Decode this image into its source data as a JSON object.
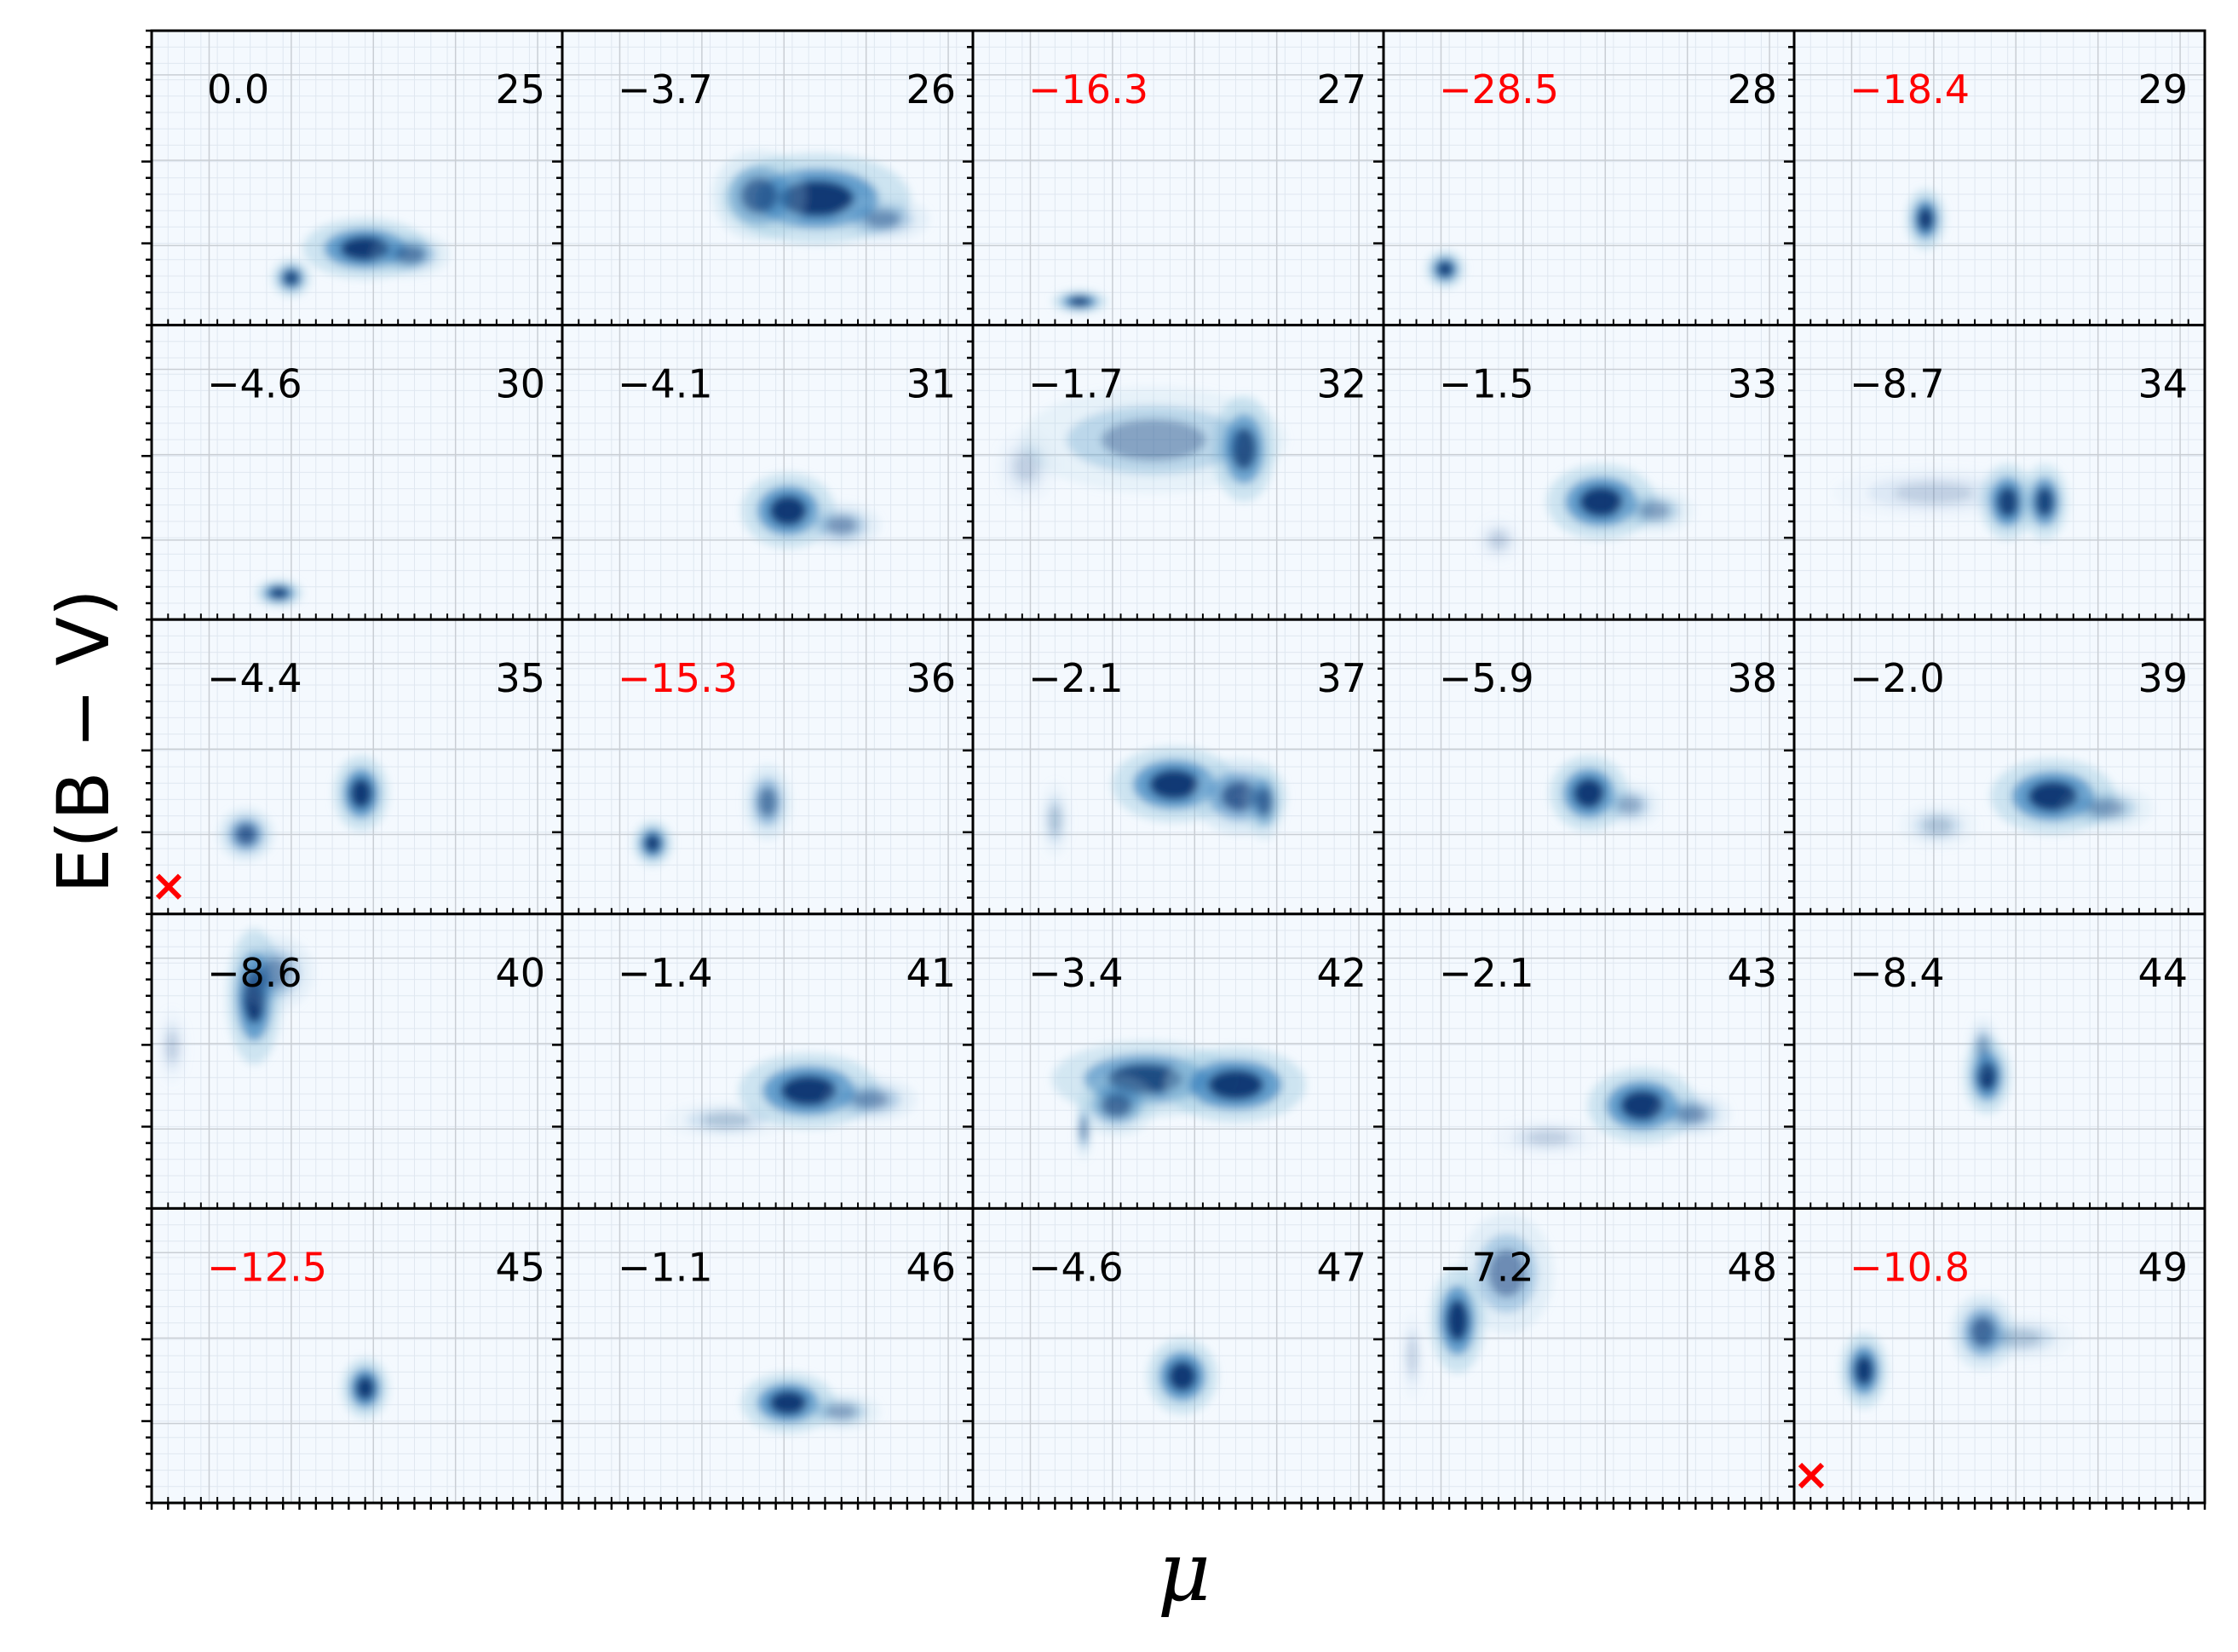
{
  "figure": {
    "xlabel": "μ",
    "ylabel": "E(B − V)"
  },
  "colors": {
    "panel_background": "#f4f9fe",
    "density_dark": "#08306b",
    "density_mid": "#2171b5",
    "density_light": "#9ecae1",
    "negative_score": "#ff0000",
    "normal_score": "#000000",
    "marker": "#ff0000"
  },
  "chart_data": {
    "type": "heatmap",
    "layout": {
      "rows": 5,
      "cols": 5
    },
    "xlabel": "μ",
    "ylabel": "E(B − V)",
    "ticks_labeled": false,
    "grid": true,
    "panels": [
      {
        "id": "25",
        "score": "0.0",
        "flagged": false,
        "marker": false,
        "blobs": [
          {
            "x": 0.52,
            "y": 0.26,
            "sx": 0.08,
            "sy": 0.04,
            "w": 1.0
          },
          {
            "x": 0.63,
            "y": 0.24,
            "sx": 0.05,
            "sy": 0.03,
            "w": 0.5
          },
          {
            "x": 0.34,
            "y": 0.16,
            "sx": 0.025,
            "sy": 0.025,
            "w": 0.9
          }
        ]
      },
      {
        "id": "26",
        "score": "−3.7",
        "flagged": false,
        "marker": false,
        "blobs": [
          {
            "x": 0.62,
            "y": 0.43,
            "sx": 0.12,
            "sy": 0.06,
            "w": 1.0
          },
          {
            "x": 0.48,
            "y": 0.44,
            "sx": 0.06,
            "sy": 0.06,
            "w": 0.6
          },
          {
            "x": 0.78,
            "y": 0.36,
            "sx": 0.06,
            "sy": 0.03,
            "w": 0.4
          }
        ]
      },
      {
        "id": "27",
        "score": "−16.3",
        "flagged": true,
        "marker": false,
        "blobs": [
          {
            "x": 0.26,
            "y": 0.08,
            "sx": 0.035,
            "sy": 0.015,
            "w": 1.0
          }
        ]
      },
      {
        "id": "28",
        "score": "−28.5",
        "flagged": true,
        "marker": false,
        "blobs": [
          {
            "x": 0.15,
            "y": 0.19,
            "sx": 0.025,
            "sy": 0.025,
            "w": 1.0
          }
        ]
      },
      {
        "id": "29",
        "score": "−18.4",
        "flagged": true,
        "marker": false,
        "blobs": [
          {
            "x": 0.32,
            "y": 0.36,
            "sx": 0.025,
            "sy": 0.04,
            "w": 1.0
          }
        ]
      },
      {
        "id": "30",
        "score": "−4.6",
        "flagged": false,
        "marker": false,
        "blobs": [
          {
            "x": 0.31,
            "y": 0.09,
            "sx": 0.03,
            "sy": 0.018,
            "w": 1.0
          }
        ]
      },
      {
        "id": "31",
        "score": "−4.1",
        "flagged": false,
        "marker": false,
        "blobs": [
          {
            "x": 0.55,
            "y": 0.37,
            "sx": 0.06,
            "sy": 0.05,
            "w": 1.0
          },
          {
            "x": 0.68,
            "y": 0.32,
            "sx": 0.05,
            "sy": 0.03,
            "w": 0.4
          }
        ]
      },
      {
        "id": "32",
        "score": "−1.7",
        "flagged": false,
        "marker": false,
        "blobs": [
          {
            "x": 0.66,
            "y": 0.58,
            "sx": 0.04,
            "sy": 0.07,
            "w": 1.0
          },
          {
            "x": 0.44,
            "y": 0.61,
            "sx": 0.17,
            "sy": 0.07,
            "w": 0.35
          },
          {
            "x": 0.13,
            "y": 0.52,
            "sx": 0.04,
            "sy": 0.05,
            "w": 0.15
          }
        ]
      },
      {
        "id": "33",
        "score": "−1.5",
        "flagged": false,
        "marker": false,
        "blobs": [
          {
            "x": 0.53,
            "y": 0.4,
            "sx": 0.07,
            "sy": 0.05,
            "w": 1.0
          },
          {
            "x": 0.66,
            "y": 0.37,
            "sx": 0.05,
            "sy": 0.03,
            "w": 0.35
          },
          {
            "x": 0.28,
            "y": 0.27,
            "sx": 0.03,
            "sy": 0.03,
            "w": 0.15
          }
        ]
      },
      {
        "id": "34",
        "score": "−8.7",
        "flagged": false,
        "marker": false,
        "blobs": [
          {
            "x": 0.52,
            "y": 0.4,
            "sx": 0.035,
            "sy": 0.05,
            "w": 1.0
          },
          {
            "x": 0.61,
            "y": 0.4,
            "sx": 0.03,
            "sy": 0.05,
            "w": 0.9
          },
          {
            "x": 0.34,
            "y": 0.43,
            "sx": 0.13,
            "sy": 0.035,
            "w": 0.15
          }
        ]
      },
      {
        "id": "35",
        "score": "−4.4",
        "flagged": false,
        "marker": true,
        "blobs": [
          {
            "x": 0.51,
            "y": 0.41,
            "sx": 0.035,
            "sy": 0.05,
            "w": 1.0
          },
          {
            "x": 0.23,
            "y": 0.27,
            "sx": 0.035,
            "sy": 0.035,
            "w": 0.7
          }
        ]
      },
      {
        "id": "36",
        "score": "−15.3",
        "flagged": true,
        "marker": false,
        "blobs": [
          {
            "x": 0.22,
            "y": 0.24,
            "sx": 0.025,
            "sy": 0.03,
            "w": 1.0
          },
          {
            "x": 0.5,
            "y": 0.38,
            "sx": 0.03,
            "sy": 0.05,
            "w": 0.55
          }
        ]
      },
      {
        "id": "37",
        "score": "−2.1",
        "flagged": false,
        "marker": false,
        "blobs": [
          {
            "x": 0.49,
            "y": 0.44,
            "sx": 0.08,
            "sy": 0.05,
            "w": 1.0
          },
          {
            "x": 0.65,
            "y": 0.4,
            "sx": 0.06,
            "sy": 0.05,
            "w": 0.7
          },
          {
            "x": 0.71,
            "y": 0.38,
            "sx": 0.025,
            "sy": 0.05,
            "w": 0.6
          },
          {
            "x": 0.2,
            "y": 0.32,
            "sx": 0.02,
            "sy": 0.05,
            "w": 0.2
          }
        ]
      },
      {
        "id": "38",
        "score": "−5.9",
        "flagged": false,
        "marker": false,
        "blobs": [
          {
            "x": 0.5,
            "y": 0.41,
            "sx": 0.05,
            "sy": 0.05,
            "w": 1.0
          },
          {
            "x": 0.6,
            "y": 0.37,
            "sx": 0.04,
            "sy": 0.03,
            "w": 0.3
          }
        ]
      },
      {
        "id": "39",
        "score": "−2.0",
        "flagged": false,
        "marker": false,
        "blobs": [
          {
            "x": 0.63,
            "y": 0.4,
            "sx": 0.08,
            "sy": 0.05,
            "w": 1.0
          },
          {
            "x": 0.76,
            "y": 0.36,
            "sx": 0.06,
            "sy": 0.03,
            "w": 0.35
          },
          {
            "x": 0.35,
            "y": 0.3,
            "sx": 0.05,
            "sy": 0.03,
            "w": 0.2
          }
        ]
      },
      {
        "id": "40",
        "score": "−8.6",
        "flagged": false,
        "marker": false,
        "blobs": [
          {
            "x": 0.25,
            "y": 0.72,
            "sx": 0.035,
            "sy": 0.09,
            "w": 1.0
          },
          {
            "x": 0.3,
            "y": 0.8,
            "sx": 0.05,
            "sy": 0.05,
            "w": 0.4
          },
          {
            "x": 0.05,
            "y": 0.55,
            "sx": 0.02,
            "sy": 0.05,
            "w": 0.15
          }
        ]
      },
      {
        "id": "41",
        "score": "−1.4",
        "flagged": false,
        "marker": false,
        "blobs": [
          {
            "x": 0.6,
            "y": 0.4,
            "sx": 0.09,
            "sy": 0.05,
            "w": 1.0
          },
          {
            "x": 0.75,
            "y": 0.37,
            "sx": 0.06,
            "sy": 0.03,
            "w": 0.4
          },
          {
            "x": 0.4,
            "y": 0.3,
            "sx": 0.08,
            "sy": 0.025,
            "w": 0.2
          }
        ]
      },
      {
        "id": "42",
        "score": "−3.4",
        "flagged": false,
        "marker": false,
        "blobs": [
          {
            "x": 0.42,
            "y": 0.44,
            "sx": 0.12,
            "sy": 0.05,
            "w": 0.85
          },
          {
            "x": 0.64,
            "y": 0.42,
            "sx": 0.09,
            "sy": 0.05,
            "w": 1.0
          },
          {
            "x": 0.35,
            "y": 0.35,
            "sx": 0.05,
            "sy": 0.04,
            "w": 0.6
          },
          {
            "x": 0.27,
            "y": 0.27,
            "sx": 0.01,
            "sy": 0.04,
            "w": 0.5
          }
        ]
      },
      {
        "id": "43",
        "score": "−2.1",
        "flagged": false,
        "marker": false,
        "blobs": [
          {
            "x": 0.63,
            "y": 0.35,
            "sx": 0.07,
            "sy": 0.05,
            "w": 1.0
          },
          {
            "x": 0.75,
            "y": 0.32,
            "sx": 0.05,
            "sy": 0.03,
            "w": 0.4
          },
          {
            "x": 0.4,
            "y": 0.24,
            "sx": 0.07,
            "sy": 0.025,
            "w": 0.15
          }
        ]
      },
      {
        "id": "44",
        "score": "−8.4",
        "flagged": false,
        "marker": false,
        "blobs": [
          {
            "x": 0.47,
            "y": 0.45,
            "sx": 0.03,
            "sy": 0.05,
            "w": 1.0
          },
          {
            "x": 0.46,
            "y": 0.55,
            "sx": 0.02,
            "sy": 0.04,
            "w": 0.3
          }
        ]
      },
      {
        "id": "45",
        "score": "−12.5",
        "flagged": true,
        "marker": false,
        "blobs": [
          {
            "x": 0.52,
            "y": 0.39,
            "sx": 0.03,
            "sy": 0.04,
            "w": 1.0
          }
        ]
      },
      {
        "id": "46",
        "score": "−1.1",
        "flagged": false,
        "marker": false,
        "blobs": [
          {
            "x": 0.55,
            "y": 0.34,
            "sx": 0.06,
            "sy": 0.04,
            "w": 1.0
          },
          {
            "x": 0.68,
            "y": 0.31,
            "sx": 0.05,
            "sy": 0.025,
            "w": 0.35
          }
        ]
      },
      {
        "id": "47",
        "score": "−4.6",
        "flagged": false,
        "marker": false,
        "blobs": [
          {
            "x": 0.51,
            "y": 0.43,
            "sx": 0.045,
            "sy": 0.05,
            "w": 1.0
          }
        ]
      },
      {
        "id": "48",
        "score": "−7.2",
        "flagged": false,
        "marker": false,
        "blobs": [
          {
            "x": 0.18,
            "y": 0.62,
            "sx": 0.035,
            "sy": 0.07,
            "w": 1.0
          },
          {
            "x": 0.3,
            "y": 0.78,
            "sx": 0.06,
            "sy": 0.08,
            "w": 0.45
          },
          {
            "x": 0.07,
            "y": 0.5,
            "sx": 0.015,
            "sy": 0.06,
            "w": 0.15
          }
        ]
      },
      {
        "id": "49",
        "score": "−10.8",
        "flagged": true,
        "marker": true,
        "blobs": [
          {
            "x": 0.17,
            "y": 0.45,
            "sx": 0.03,
            "sy": 0.05,
            "w": 1.0
          },
          {
            "x": 0.46,
            "y": 0.58,
            "sx": 0.04,
            "sy": 0.05,
            "w": 0.7
          },
          {
            "x": 0.55,
            "y": 0.56,
            "sx": 0.07,
            "sy": 0.03,
            "w": 0.2
          }
        ]
      }
    ]
  }
}
